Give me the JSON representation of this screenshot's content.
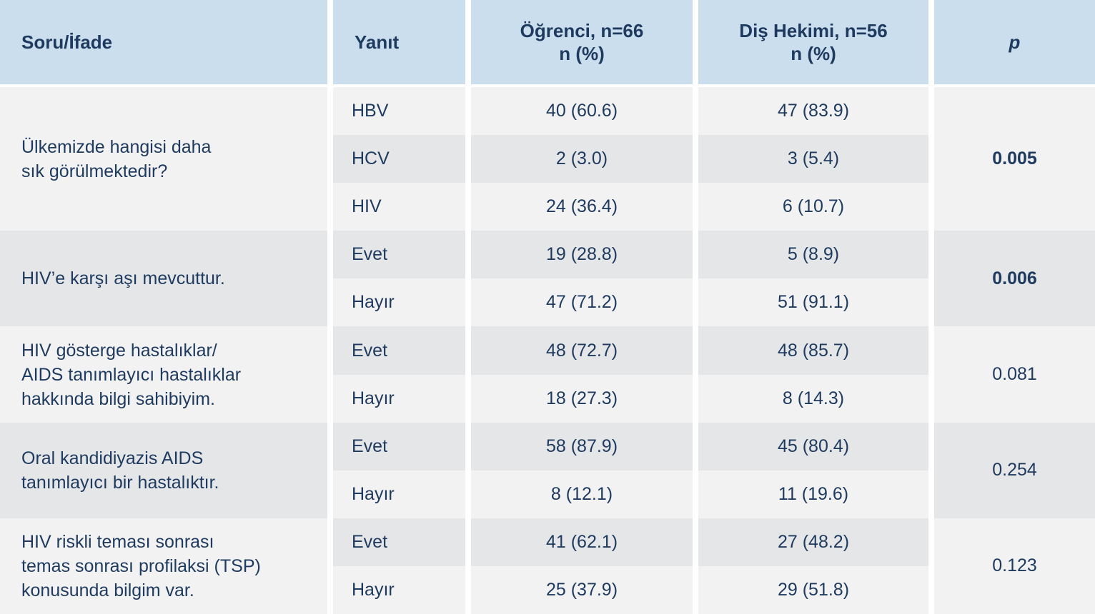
{
  "colors": {
    "header_bg": "#cbdeee",
    "text_navy": "#1e3a5e",
    "row_light": "#f2f2f3",
    "row_dark": "#e5e6e8",
    "gap_white": "#ffffff"
  },
  "header": {
    "question": "Soru/İfade",
    "answer": "Yanıt",
    "student": "Öğrenci, n=66\nn (%)",
    "dentist": "Diş Hekimi, n=56\nn (%)",
    "p": "p"
  },
  "blocks": [
    {
      "question": "Ülkemizde hangisi daha\nsık görülmektedir?",
      "p": "0.005",
      "p_bold": true,
      "rows": [
        {
          "answer": "HBV",
          "student": "40 (60.6)",
          "dentist": "47 (83.9)"
        },
        {
          "answer": "HCV",
          "student": "2 (3.0)",
          "dentist": "3 (5.4)"
        },
        {
          "answer": "HIV",
          "student": "24 (36.4)",
          "dentist": "6 (10.7)"
        }
      ]
    },
    {
      "question": "HIV’e karşı aşı mevcuttur.",
      "p": "0.006",
      "p_bold": true,
      "rows": [
        {
          "answer": "Evet",
          "student": "19 (28.8)",
          "dentist": "5 (8.9)"
        },
        {
          "answer": "Hayır",
          "student": "47 (71.2)",
          "dentist": "51 (91.1)"
        }
      ]
    },
    {
      "question": "HIV gösterge hastalıklar/\nAIDS tanımlayıcı hastalıklar\nhakkında bilgi sahibiyim.",
      "p": "0.081",
      "p_bold": false,
      "rows": [
        {
          "answer": "Evet",
          "student": "48 (72.7)",
          "dentist": "48 (85.7)"
        },
        {
          "answer": "Hayır",
          "student": "18 (27.3)",
          "dentist": "8 (14.3)"
        }
      ]
    },
    {
      "question": "Oral kandidiyazis AIDS\ntanımlayıcı bir hastalıktır.",
      "p": "0.254",
      "p_bold": false,
      "rows": [
        {
          "answer": "Evet",
          "student": "58 (87.9)",
          "dentist": "45 (80.4)"
        },
        {
          "answer": "Hayır",
          "student": "8 (12.1)",
          "dentist": "11 (19.6)"
        }
      ]
    },
    {
      "question": "HIV riskli teması sonrası\ntemas sonrası profilaksi (TSP)\nkonusunda bilgim var.",
      "p": "0.123",
      "p_bold": false,
      "rows": [
        {
          "answer": "Evet",
          "student": "41 (62.1)",
          "dentist": "27 (48.2)"
        },
        {
          "answer": "Hayır",
          "student": "25 (37.9)",
          "dentist": "29 (51.8)"
        }
      ]
    }
  ],
  "chart_data": {
    "type": "table",
    "title": "",
    "columns": [
      "Soru/İfade",
      "Yanıt",
      "Öğrenci, n=66 n (%)",
      "Diş Hekimi, n=56 n (%)",
      "p"
    ],
    "rows": [
      [
        "Ülkemizde hangisi daha sık görülmektedir?",
        "HBV",
        "40 (60.6)",
        "47 (83.9)",
        "0.005"
      ],
      [
        "",
        "HCV",
        "2 (3.0)",
        "3 (5.4)",
        ""
      ],
      [
        "",
        "HIV",
        "24 (36.4)",
        "6 (10.7)",
        ""
      ],
      [
        "HIV’e karşı aşı mevcuttur.",
        "Evet",
        "19 (28.8)",
        "5 (8.9)",
        "0.006"
      ],
      [
        "",
        "Hayır",
        "47 (71.2)",
        "51 (91.1)",
        ""
      ],
      [
        "HIV gösterge hastalıklar/ AIDS tanımlayıcı hastalıklar hakkında bilgi sahibiyim.",
        "Evet",
        "48 (72.7)",
        "48 (85.7)",
        "0.081"
      ],
      [
        "",
        "Hayır",
        "18 (27.3)",
        "8 (14.3)",
        ""
      ],
      [
        "Oral kandidiyazis AIDS tanımlayıcı bir hastalıktır.",
        "Evet",
        "58 (87.9)",
        "45 (80.4)",
        "0.254"
      ],
      [
        "",
        "Hayır",
        "8 (12.1)",
        "11 (19.6)",
        ""
      ],
      [
        "HIV riskli teması sonrası temas sonrası profilaksi (TSP) konusunda bilgim var.",
        "Evet",
        "41 (62.1)",
        "27 (48.2)",
        "0.123"
      ],
      [
        "",
        "Hayır",
        "25 (37.9)",
        "29 (51.8)",
        ""
      ]
    ],
    "bold_p_values": [
      "0.005",
      "0.006"
    ],
    "layout": {
      "header_row_shaded": true,
      "body_rows_striped": true
    }
  }
}
